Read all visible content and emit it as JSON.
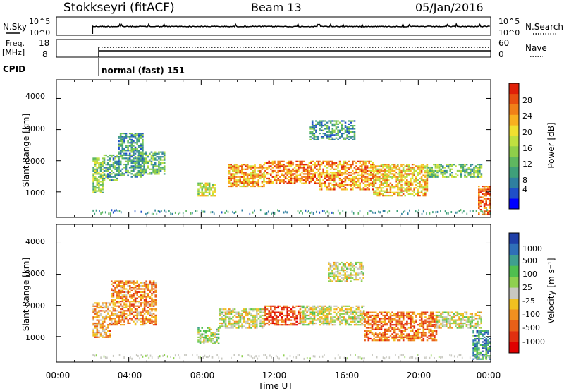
{
  "header": {
    "station": "Stokkseyri (fitACF)",
    "beam": "Beam 13",
    "date": "05/Jan/2016"
  },
  "panels": {
    "nsky": {
      "left_label": "N.Sky",
      "left_ticks": [
        "10^5",
        "10^0"
      ],
      "right_ticks": [
        "10^5",
        "10^0"
      ],
      "right_label": "N.Search"
    },
    "freq": {
      "left_label_1": "Freq.",
      "left_label_2": "[MHz]",
      "left_ticks": [
        "18",
        "8"
      ],
      "right_ticks": [
        "60",
        "0"
      ],
      "right_label": "Nave"
    },
    "cpid": {
      "label": "CPID",
      "value": "normal (fast) 151"
    }
  },
  "power_panel": {
    "ylabel": "Slant Range [km]",
    "yticks": [
      "4000",
      "3000",
      "2000",
      "1000"
    ],
    "colorbar": {
      "label": "Power [dB]",
      "ticks": [
        "28",
        "24",
        "20",
        "16",
        "12",
        "8",
        "4"
      ],
      "colors": [
        "#0000ff",
        "#1f4fc8",
        "#2f7fa0",
        "#3fa07a",
        "#5fb860",
        "#8fcf4a",
        "#bfe040",
        "#f0e030",
        "#f8b020",
        "#f08018",
        "#e85010",
        "#e02008"
      ]
    }
  },
  "velocity_panel": {
    "ylabel": "Slant Range [km]",
    "yticks": [
      "4000",
      "3000",
      "2000",
      "1000"
    ],
    "colorbar": {
      "label": "Velocity [m s⁻¹]",
      "ticks": [
        "1000",
        "500",
        "100",
        "25",
        "-25",
        "-100",
        "-500",
        "-1000"
      ],
      "colors": [
        "#1f3fa8",
        "#2f6fb8",
        "#3f9f8f",
        "#4fbf4f",
        "#8fd04f",
        "#c8c8c0",
        "#f0c020",
        "#f09020",
        "#e86018",
        "#e03010",
        "#e00000"
      ]
    }
  },
  "xaxis": {
    "label": "Time UT",
    "ticks": [
      "00:00",
      "04:00",
      "08:00",
      "12:00",
      "16:00",
      "20:00",
      "00:00"
    ]
  },
  "chart_data": [
    {
      "type": "heatmap",
      "title": "Stokkseyri (fitACF) Beam 13 05/Jan/2016",
      "xlabel": "Time UT",
      "ylabel": "Slant Range [km]",
      "colorbar_label": "Power [dB]",
      "xlim": [
        0,
        24
      ],
      "ylim": [
        180,
        4600
      ],
      "clim": [
        0,
        30
      ],
      "regions": [
        {
          "t": [
            2.0,
            2.6
          ],
          "range": [
            1000,
            2100
          ],
          "value": 14
        },
        {
          "t": [
            2.6,
            3.4
          ],
          "range": [
            1400,
            2200
          ],
          "value": 10
        },
        {
          "t": [
            3.4,
            4.8
          ],
          "range": [
            1500,
            2900
          ],
          "value": 9
        },
        {
          "t": [
            4.5,
            6.0
          ],
          "range": [
            1600,
            2300
          ],
          "value": 11
        },
        {
          "t": [
            7.8,
            8.8
          ],
          "range": [
            900,
            1300
          ],
          "value": 16
        },
        {
          "t": [
            9.5,
            11.5
          ],
          "range": [
            1200,
            1900
          ],
          "value": 22
        },
        {
          "t": [
            11.5,
            14.5
          ],
          "range": [
            1300,
            2000
          ],
          "value": 24
        },
        {
          "t": [
            14.5,
            17.5
          ],
          "range": [
            1100,
            2000
          ],
          "value": 23
        },
        {
          "t": [
            17.5,
            20.5
          ],
          "range": [
            900,
            1900
          ],
          "value": 20
        },
        {
          "t": [
            20.5,
            23.5
          ],
          "range": [
            1500,
            1900
          ],
          "value": 12
        },
        {
          "t": [
            23.3,
            24.0
          ],
          "range": [
            300,
            1200
          ],
          "value": 26
        },
        {
          "t": [
            14.0,
            16.5
          ],
          "range": [
            2700,
            3300
          ],
          "value": 9
        }
      ]
    },
    {
      "type": "heatmap",
      "title": "Stokkseyri (fitACF) Beam 13 05/Jan/2016",
      "xlabel": "Time UT",
      "ylabel": "Slant Range [km]",
      "colorbar_label": "Velocity [m s⁻¹]",
      "xlim": [
        0,
        24
      ],
      "ylim": [
        180,
        4600
      ],
      "clim": [
        -1000,
        1000
      ],
      "regions": [
        {
          "t": [
            2.0,
            3.0
          ],
          "range": [
            1000,
            2100
          ],
          "value": -300
        },
        {
          "t": [
            3.0,
            5.5
          ],
          "range": [
            1400,
            2800
          ],
          "value": -400
        },
        {
          "t": [
            7.8,
            9.0
          ],
          "range": [
            800,
            1300
          ],
          "value": 150
        },
        {
          "t": [
            9.0,
            11.5
          ],
          "range": [
            1300,
            1900
          ],
          "value": 0
        },
        {
          "t": [
            11.5,
            13.5
          ],
          "range": [
            1400,
            2000
          ],
          "value": -600
        },
        {
          "t": [
            13.5,
            17.0
          ],
          "range": [
            1400,
            2000
          ],
          "value": 10
        },
        {
          "t": [
            15.0,
            17.0
          ],
          "range": [
            2800,
            3400
          ],
          "value": 0
        },
        {
          "t": [
            17.0,
            21.0
          ],
          "range": [
            900,
            1800
          ],
          "value": -500
        },
        {
          "t": [
            21.0,
            23.5
          ],
          "range": [
            1300,
            1800
          ],
          "value": 5
        },
        {
          "t": [
            23.0,
            24.0
          ],
          "range": [
            300,
            1200
          ],
          "value": 600
        }
      ]
    }
  ]
}
